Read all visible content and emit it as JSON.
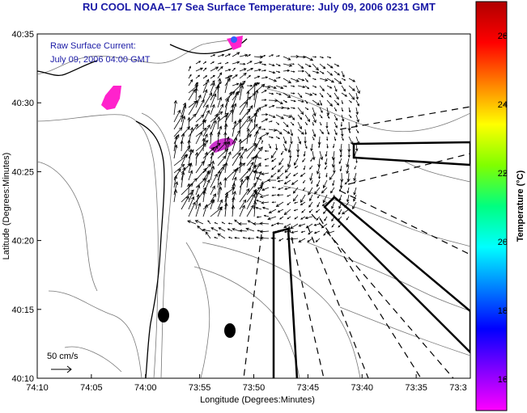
{
  "title": "RU COOL  NOAA–17  Sea Surface Temperature:  July 09, 2006 0231 GMT",
  "current_legend": {
    "line1": "Raw Surface Current:",
    "line2": "July 09, 2006 04:00 GMT"
  },
  "scale_label": "50 cm/s",
  "x_axis": {
    "title": "Longitude (Degrees:Minutes)",
    "ticks": [
      "74:10",
      "74:05",
      "74:00",
      "73:55",
      "73:50",
      "73:45",
      "73:40",
      "73:35",
      "73:3"
    ]
  },
  "y_axis": {
    "title": "Latitude (Degrees:Minutes)",
    "ticks": [
      "40:35",
      "40:30",
      "40:25",
      "40:20",
      "40:15",
      "40:10"
    ]
  },
  "colorbar": {
    "title": "Temperature (°C)",
    "ticks": [
      "26",
      "24",
      "22",
      "20",
      "18",
      "16"
    ],
    "colors": [
      "#b00000",
      "#ff0000",
      "#ff8000",
      "#ffff00",
      "#80ff00",
      "#00ff80",
      "#00ffff",
      "#0080ff",
      "#0000ff",
      "#8000ff",
      "#ff00ff"
    ]
  },
  "sst_patch_colors": {
    "magenta": "#ff22cc",
    "blue": "#3060ff"
  }
}
